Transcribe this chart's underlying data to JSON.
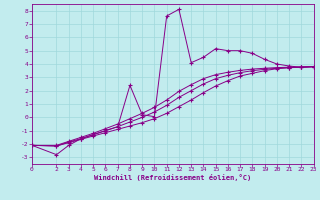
{
  "xlabel": "Windchill (Refroidissement éolien,°C)",
  "background_color": "#c2ecee",
  "grid_color": "#a0d8dc",
  "line_color": "#880088",
  "xlim": [
    0,
    23
  ],
  "ylim": [
    -3.5,
    8.5
  ],
  "xticks": [
    0,
    2,
    3,
    4,
    5,
    6,
    7,
    8,
    9,
    10,
    11,
    12,
    13,
    14,
    15,
    16,
    17,
    18,
    19,
    20,
    21,
    22,
    23
  ],
  "yticks": [
    -3,
    -2,
    -1,
    0,
    1,
    2,
    3,
    4,
    5,
    6,
    7,
    8
  ],
  "series1": [
    [
      0,
      -2.1
    ],
    [
      2,
      -2.8
    ],
    [
      3,
      -2.1
    ],
    [
      4,
      -1.6
    ],
    [
      5,
      -1.3
    ],
    [
      6,
      -1.0
    ],
    [
      7,
      -0.7
    ],
    [
      8,
      2.4
    ],
    [
      9,
      0.2
    ],
    [
      10,
      0.05
    ],
    [
      11,
      7.6
    ],
    [
      12,
      8.1
    ],
    [
      13,
      4.1
    ],
    [
      14,
      4.5
    ],
    [
      15,
      5.15
    ],
    [
      16,
      5.0
    ],
    [
      17,
      5.0
    ],
    [
      18,
      4.8
    ],
    [
      19,
      4.35
    ],
    [
      20,
      4.0
    ],
    [
      21,
      3.85
    ],
    [
      22,
      3.75
    ],
    [
      23,
      3.8
    ]
  ],
  "series2": [
    [
      0,
      -2.1
    ],
    [
      2,
      -2.15
    ],
    [
      3,
      -1.9
    ],
    [
      4,
      -1.65
    ],
    [
      5,
      -1.4
    ],
    [
      6,
      -1.15
    ],
    [
      7,
      -0.9
    ],
    [
      8,
      -0.65
    ],
    [
      9,
      -0.4
    ],
    [
      10,
      -0.1
    ],
    [
      11,
      0.3
    ],
    [
      12,
      0.8
    ],
    [
      13,
      1.3
    ],
    [
      14,
      1.85
    ],
    [
      15,
      2.35
    ],
    [
      16,
      2.75
    ],
    [
      17,
      3.1
    ],
    [
      18,
      3.3
    ],
    [
      19,
      3.5
    ],
    [
      20,
      3.65
    ],
    [
      21,
      3.72
    ],
    [
      22,
      3.76
    ],
    [
      23,
      3.8
    ]
  ],
  "series3": [
    [
      0,
      -2.1
    ],
    [
      2,
      -2.15
    ],
    [
      3,
      -1.85
    ],
    [
      4,
      -1.6
    ],
    [
      5,
      -1.3
    ],
    [
      6,
      -1.0
    ],
    [
      7,
      -0.7
    ],
    [
      8,
      -0.35
    ],
    [
      9,
      0.0
    ],
    [
      10,
      0.4
    ],
    [
      11,
      0.9
    ],
    [
      12,
      1.5
    ],
    [
      13,
      2.0
    ],
    [
      14,
      2.5
    ],
    [
      15,
      2.9
    ],
    [
      16,
      3.15
    ],
    [
      17,
      3.35
    ],
    [
      18,
      3.5
    ],
    [
      19,
      3.6
    ],
    [
      20,
      3.68
    ],
    [
      21,
      3.73
    ],
    [
      22,
      3.77
    ],
    [
      23,
      3.8
    ]
  ],
  "series4": [
    [
      0,
      -2.1
    ],
    [
      2,
      -2.1
    ],
    [
      3,
      -1.8
    ],
    [
      4,
      -1.5
    ],
    [
      5,
      -1.2
    ],
    [
      6,
      -0.85
    ],
    [
      7,
      -0.5
    ],
    [
      8,
      -0.1
    ],
    [
      9,
      0.3
    ],
    [
      10,
      0.75
    ],
    [
      11,
      1.3
    ],
    [
      12,
      1.95
    ],
    [
      13,
      2.45
    ],
    [
      14,
      2.9
    ],
    [
      15,
      3.2
    ],
    [
      16,
      3.38
    ],
    [
      17,
      3.52
    ],
    [
      18,
      3.62
    ],
    [
      19,
      3.68
    ],
    [
      20,
      3.73
    ],
    [
      21,
      3.76
    ],
    [
      22,
      3.78
    ],
    [
      23,
      3.8
    ]
  ]
}
